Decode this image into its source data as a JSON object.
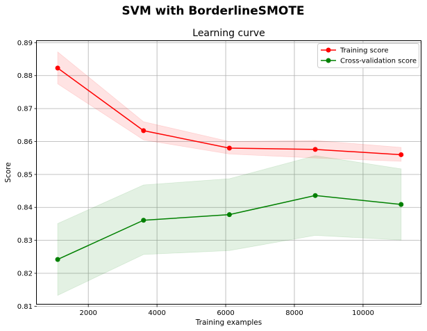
{
  "figure": {
    "suptitle": "SVM with BorderlineSMOTE"
  },
  "chart_data": {
    "type": "line",
    "title": "Learning curve",
    "xlabel": "Training examples",
    "ylabel": "Score",
    "xlim": [
      500,
      11700
    ],
    "ylim": [
      0.8105,
      0.8905
    ],
    "xticks": [
      2000,
      4000,
      6000,
      8000,
      10000
    ],
    "yticks": [
      0.81,
      0.82,
      0.83,
      0.84,
      0.85,
      0.86,
      0.87,
      0.88,
      0.89
    ],
    "grid": true,
    "legend_position": "top-right",
    "x": [
      1108,
      3608,
      6108,
      8608,
      11108
    ],
    "series": [
      {
        "name": "Training score",
        "color": "#ff0000",
        "band_color": "#ff0000",
        "values": [
          0.8823,
          0.8633,
          0.858,
          0.8576,
          0.856
        ],
        "lower": [
          0.8775,
          0.8605,
          0.8562,
          0.855,
          0.854
        ],
        "upper": [
          0.8872,
          0.866,
          0.86,
          0.8603,
          0.8582
        ]
      },
      {
        "name": "Cross-validation score",
        "color": "#008000",
        "band_color": "#008000",
        "values": [
          0.8242,
          0.8361,
          0.8378,
          0.8436,
          0.8409
        ],
        "lower": [
          0.8133,
          0.8257,
          0.8269,
          0.8315,
          0.8301
        ],
        "upper": [
          0.8351,
          0.8468,
          0.8487,
          0.8557,
          0.8517
        ]
      }
    ]
  }
}
